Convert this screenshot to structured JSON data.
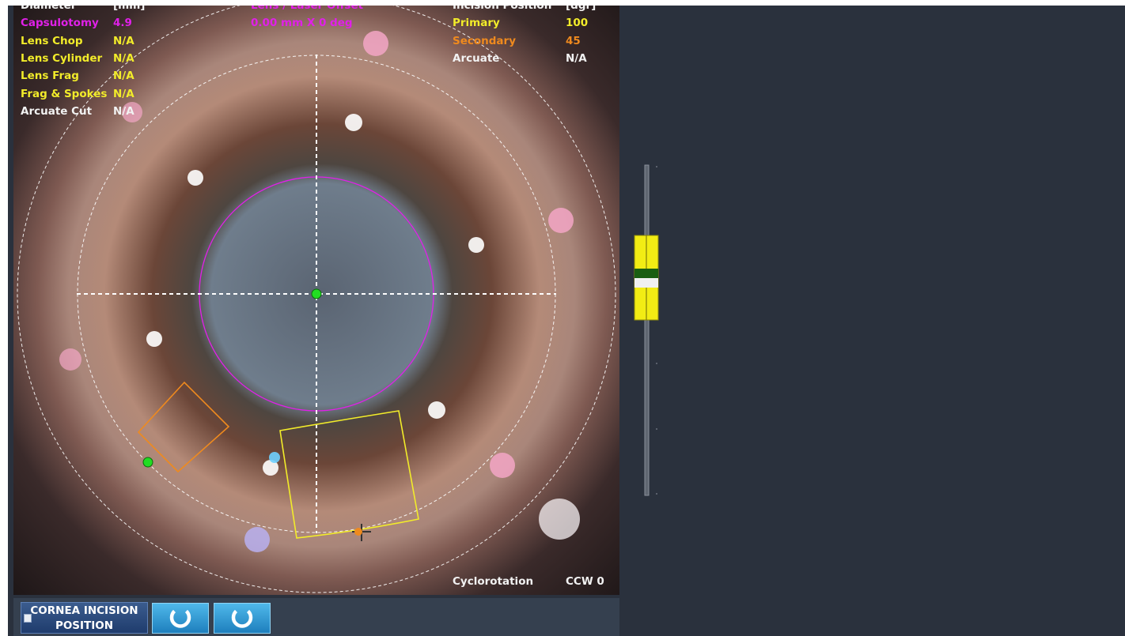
{
  "overlay": {
    "left_panel": {
      "header": {
        "label": "Diameter",
        "unit": "[mm]"
      },
      "rows": [
        {
          "label": "Capsulotomy",
          "value": "4.9"
        },
        {
          "label": "Lens Chop",
          "value": "N/A"
        },
        {
          "label": "Lens Cylinder",
          "value": "N/A"
        },
        {
          "label": "Lens Frag",
          "value": "N/A"
        },
        {
          "label": "Frag & Spokes",
          "value": "N/A"
        },
        {
          "label": "Arcuate Cut",
          "value": "N/A"
        }
      ]
    },
    "center_panel": {
      "header": "Lens / Laser Offset",
      "value": "0.00 mm X 0 deg"
    },
    "right_panel": {
      "header": {
        "label": "Incision Position",
        "unit": "[dgr]"
      },
      "rows": [
        {
          "label": "Primary",
          "value": "100"
        },
        {
          "label": "Secondary",
          "value": "45"
        },
        {
          "label": "Arcuate",
          "value": "N/A"
        }
      ]
    },
    "cyclorotation": {
      "label": "Cyclorotation",
      "value": "CCW 0"
    }
  },
  "controls": {
    "cornea_incision_line1": "CORNEA INCISION",
    "cornea_incision_line2": "POSITION",
    "rotate_ccw_icon": "rotate-ccw-icon",
    "rotate_cw_icon": "rotate-cw-icon"
  },
  "colors": {
    "capsulotomy": "#e020e8",
    "primary_incision": "#f2ec2a",
    "secondary_incision": "#ef8a1e",
    "center_marker": "#22dd22",
    "slider_yellow": "#f2ec14",
    "slider_green": "#1a5e12"
  }
}
